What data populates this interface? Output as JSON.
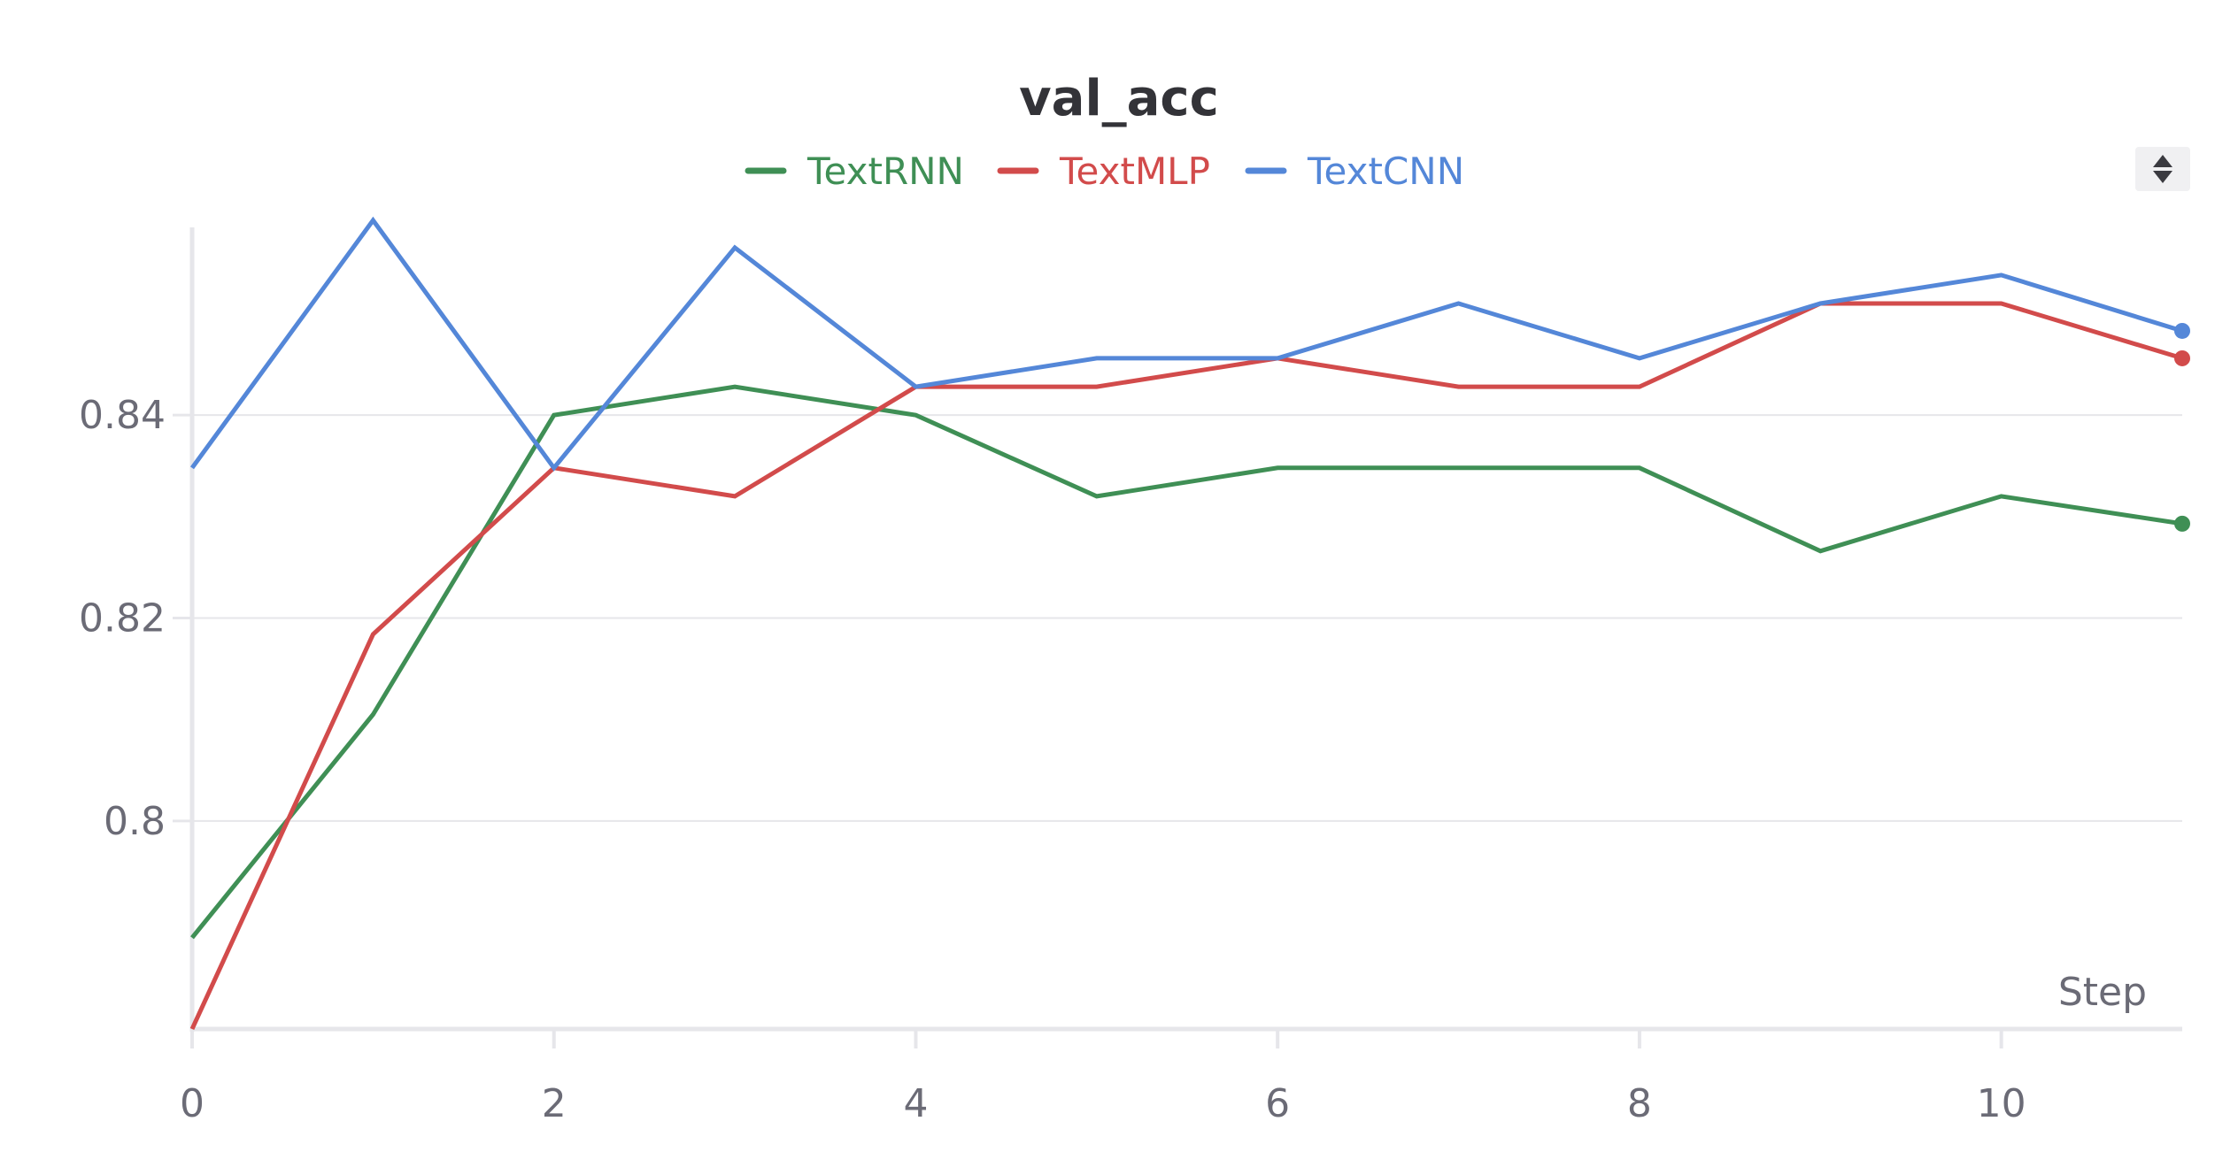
{
  "chart_data": {
    "type": "line",
    "title": "val_acc",
    "xlabel": "Step",
    "ylabel": "",
    "xlim": [
      0,
      11
    ],
    "ylim": [
      0.7795,
      0.8585
    ],
    "x_ticks": [
      0,
      2,
      4,
      6,
      8,
      10
    ],
    "x_tick_labels": [
      "0",
      "2",
      "4",
      "6",
      "8",
      "10"
    ],
    "y_ticks": [
      0.8,
      0.82,
      0.84
    ],
    "y_tick_labels": [
      "0.8",
      "0.82",
      "0.84"
    ],
    "grid": true,
    "legend_position": "top-center",
    "x": [
      0,
      1,
      2,
      3,
      4,
      5,
      6,
      7,
      8,
      9,
      10,
      11
    ],
    "series": [
      {
        "name": "TextRNN",
        "color": "#3f8f55",
        "values": [
          0.7885,
          0.8105,
          0.84,
          0.8428,
          0.84,
          0.832,
          0.8348,
          0.8348,
          0.8348,
          0.8266,
          0.832,
          0.8293
        ]
      },
      {
        "name": "TextMLP",
        "color": "#d24b4b",
        "values": [
          0.7795,
          0.8184,
          0.8348,
          0.832,
          0.8428,
          0.8428,
          0.8456,
          0.8428,
          0.8428,
          0.851,
          0.851,
          0.8456
        ]
      },
      {
        "name": "TextCNN",
        "color": "#5487d8",
        "values": [
          0.8348,
          0.8592,
          0.8348,
          0.8565,
          0.8428,
          0.8456,
          0.8456,
          0.851,
          0.8456,
          0.851,
          0.8538,
          0.8483
        ]
      }
    ]
  },
  "controls": {
    "sort_icon": "sort-updown-icon"
  }
}
